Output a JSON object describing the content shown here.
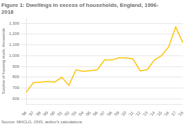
{
  "chart_data": {
    "type": "line",
    "title": "Figure 1: Dwellings in excess of households, England, 1996-\n2018",
    "ylabel": "Surplus of housing stock, thousands",
    "source": "Source: MHCLG, ONS, author's calculations",
    "categories": [
      "'96",
      "'97",
      "'98",
      "'99",
      "'00",
      "'01",
      "'02",
      "'03",
      "'04",
      "'05",
      "'06",
      "'07",
      "'08",
      "'09",
      "'10",
      "'11",
      "'12",
      "'13",
      "'14",
      "'15",
      "'16",
      "'17",
      "'18"
    ],
    "values": [
      660,
      750,
      755,
      760,
      755,
      800,
      725,
      870,
      855,
      860,
      870,
      960,
      960,
      980,
      980,
      970,
      860,
      870,
      960,
      1000,
      1080,
      1265,
      1120
    ],
    "color": "#FFC000",
    "ylim": [
      550,
      1350
    ],
    "yticks": [
      600,
      700,
      800,
      900,
      {
        "value": 1000,
        "label": "1,000"
      },
      {
        "value": 1100,
        "label": "1,100"
      },
      {
        "value": 1200,
        "label": "1,200"
      },
      {
        "value": 1300,
        "label": "1,300"
      }
    ],
    "grid": true
  }
}
